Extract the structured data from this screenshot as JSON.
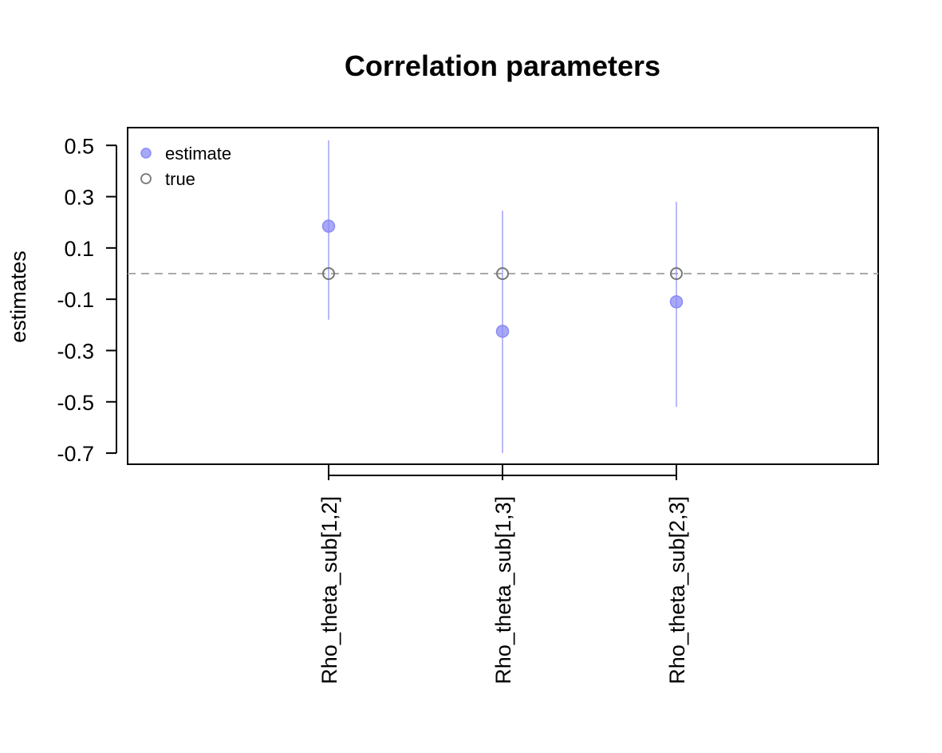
{
  "chart_data": {
    "type": "scatter",
    "title": "Correlation parameters",
    "ylabel": "estimates",
    "xlabel": "",
    "categories": [
      "Rho_theta_sub[1,2]",
      "Rho_theta_sub[1,3]",
      "Rho_theta_sub[2,3]"
    ],
    "ylim": [
      -0.75,
      0.57
    ],
    "y_ticks": [
      "0.5",
      "0.3",
      "0.1",
      "-0.1",
      "-0.3",
      "-0.5",
      "-0.7"
    ],
    "reference_line": 0,
    "grid": false,
    "legend_position": "top-left",
    "series": [
      {
        "name": "estimate",
        "values": [
          0.185,
          -0.225,
          -0.11
        ],
        "lower": [
          -0.18,
          -0.7,
          -0.52
        ],
        "upper": [
          0.52,
          0.245,
          0.28
        ],
        "color": "#8b8bf5"
      },
      {
        "name": "true",
        "values": [
          0,
          0,
          0
        ],
        "color": "#777777"
      }
    ]
  }
}
